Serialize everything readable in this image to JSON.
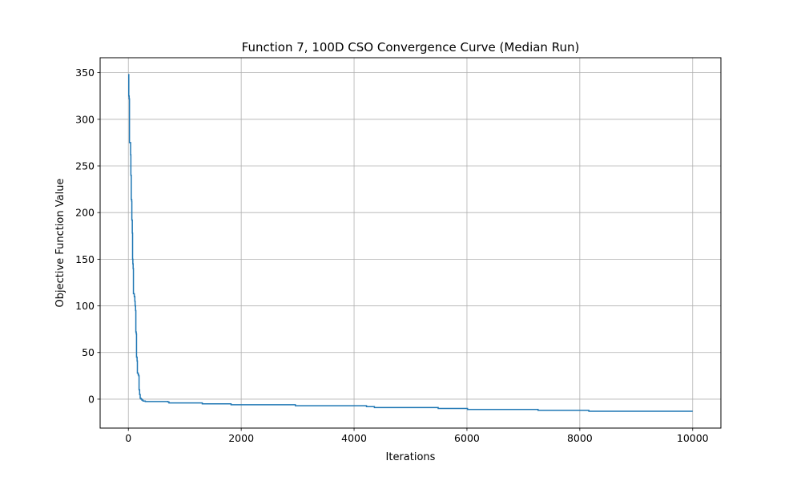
{
  "chart_data": {
    "type": "line",
    "title": "Function 7, 100D CSO Convergence Curve (Median Run)",
    "xlabel": "Iterations",
    "ylabel": "Objective Function Value",
    "xlim": [
      -500,
      10500
    ],
    "ylim": [
      -31,
      366
    ],
    "xticks": [
      0,
      2000,
      4000,
      6000,
      8000,
      10000
    ],
    "xtick_labels": [
      "0",
      "2000",
      "4000",
      "6000",
      "8000",
      "10000"
    ],
    "yticks": [
      0,
      50,
      100,
      150,
      200,
      250,
      300,
      350
    ],
    "ytick_labels": [
      "0",
      "50",
      "100",
      "150",
      "200",
      "250",
      "300",
      "350"
    ],
    "grid": true,
    "line_color": "#1f77b4",
    "series": [
      {
        "values_xy": [
          [
            0,
            348
          ],
          [
            8,
            325
          ],
          [
            15,
            322
          ],
          [
            20,
            275
          ],
          [
            30,
            275
          ],
          [
            40,
            262
          ],
          [
            45,
            240
          ],
          [
            52,
            214
          ],
          [
            60,
            212
          ],
          [
            62,
            192
          ],
          [
            70,
            178
          ],
          [
            75,
            150
          ],
          [
            80,
            145
          ],
          [
            85,
            140
          ],
          [
            90,
            113
          ],
          [
            100,
            113
          ],
          [
            105,
            110
          ],
          [
            115,
            105
          ],
          [
            120,
            100
          ],
          [
            128,
            95
          ],
          [
            133,
            72
          ],
          [
            140,
            70
          ],
          [
            145,
            45
          ],
          [
            155,
            41
          ],
          [
            160,
            28
          ],
          [
            170,
            28
          ],
          [
            175,
            26
          ],
          [
            185,
            25
          ],
          [
            190,
            10
          ],
          [
            200,
            5
          ],
          [
            210,
            1
          ],
          [
            225,
            0
          ],
          [
            240,
            -1
          ],
          [
            260,
            -2
          ],
          [
            300,
            -2.5
          ],
          [
            700,
            -3
          ],
          [
            720,
            -4
          ],
          [
            1300,
            -4
          ],
          [
            1310,
            -5
          ],
          [
            1800,
            -5
          ],
          [
            1820,
            -6
          ],
          [
            2950,
            -6
          ],
          [
            2960,
            -7
          ],
          [
            4200,
            -7
          ],
          [
            4220,
            -8
          ],
          [
            4350,
            -8
          ],
          [
            4360,
            -9
          ],
          [
            5480,
            -9
          ],
          [
            5490,
            -10
          ],
          [
            6000,
            -10
          ],
          [
            6010,
            -11
          ],
          [
            7250,
            -11
          ],
          [
            7260,
            -12
          ],
          [
            8150,
            -12
          ],
          [
            8160,
            -13
          ],
          [
            10000,
            -13
          ]
        ]
      }
    ]
  }
}
